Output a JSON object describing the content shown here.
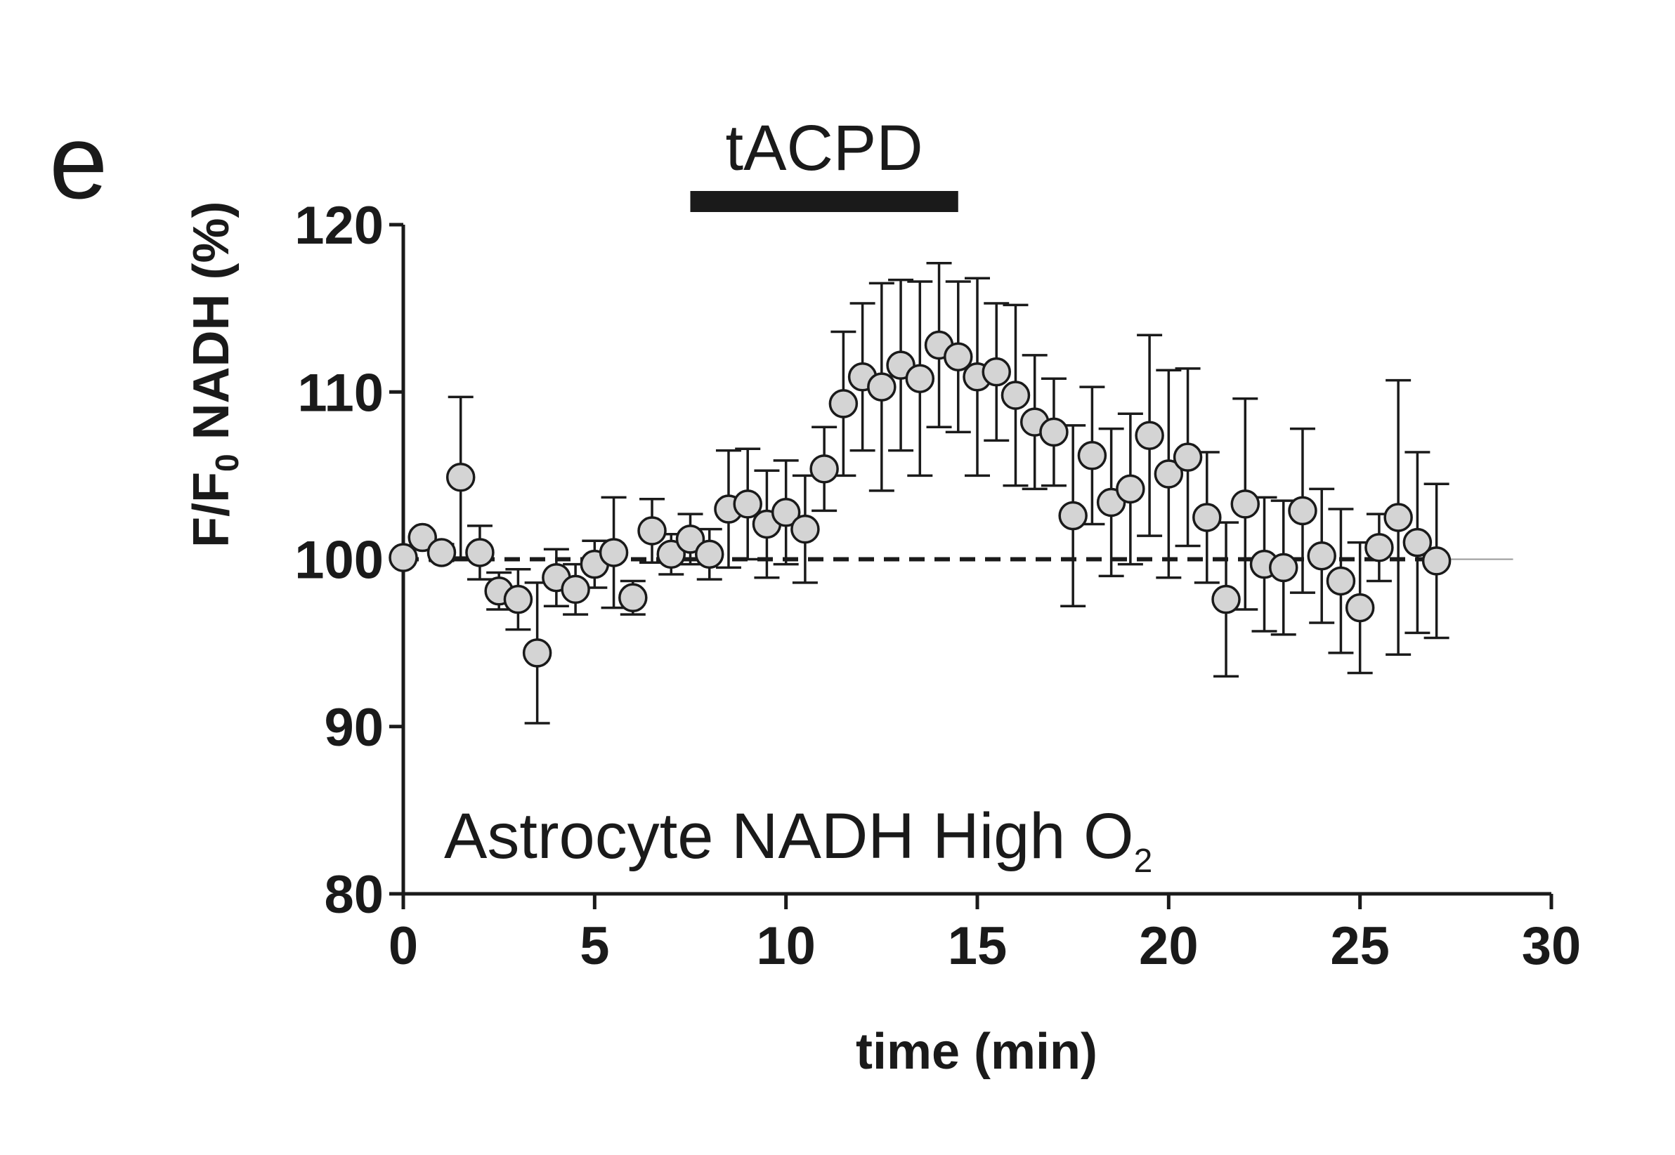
{
  "panel_label": "e",
  "treatment": {
    "label": "tACPD",
    "start": 7.5,
    "end": 14.5
  },
  "inset_label": {
    "main": "Astrocyte NADH High O",
    "subscript": "2"
  },
  "y_axis_title": {
    "prefix": "F/F",
    "subscript": "0",
    "suffix": " NADH (%)"
  },
  "x_axis_title": "time (min)",
  "chart_data": {
    "type": "scatter",
    "title": "",
    "xlabel": "time (min)",
    "ylabel": "F/F0 NADH (%)",
    "xlim": [
      0,
      30
    ],
    "ylim": [
      80,
      120
    ],
    "xticks": [
      0,
      5,
      10,
      15,
      20,
      25,
      30
    ],
    "yticks": [
      80,
      90,
      100,
      110,
      120
    ],
    "baseline": 100,
    "grid": false,
    "legend": "none",
    "series": [
      {
        "x": [
          0,
          0.5,
          1,
          1.5,
          2,
          2.5,
          3,
          3.5,
          4,
          4.5,
          5,
          5.5,
          6,
          6.5,
          7,
          7.5,
          8,
          8.5,
          9,
          9.5,
          10,
          10.5,
          11,
          11.5,
          12,
          12.5,
          13,
          13.5,
          14,
          14.5,
          15,
          15.5,
          16,
          16.5,
          17,
          17.5,
          18,
          18.5,
          19,
          19.5,
          20,
          20.5,
          21,
          21.5,
          22,
          22.5,
          23,
          23.5,
          24,
          24.5,
          25,
          25.5,
          26,
          26.5,
          27
        ],
        "y": [
          100.1,
          101.3,
          100.4,
          104.9,
          100.4,
          98.1,
          97.6,
          94.4,
          98.9,
          98.2,
          99.7,
          100.4,
          97.7,
          101.7,
          100.3,
          101.2,
          100.3,
          103.0,
          103.3,
          102.1,
          102.8,
          101.8,
          105.4,
          109.3,
          110.9,
          110.3,
          111.6,
          110.8,
          112.8,
          112.1,
          110.9,
          111.2,
          109.8,
          108.2,
          107.6,
          102.6,
          106.2,
          103.4,
          104.2,
          107.4,
          105.1,
          106.1,
          102.5,
          97.6,
          103.3,
          99.7,
          99.5,
          102.9,
          100.2,
          98.7,
          97.1,
          100.7,
          102.5,
          101.0,
          99.9
        ],
        "error": [
          0.2,
          0.4,
          0.5,
          4.8,
          1.6,
          1.1,
          1.8,
          4.2,
          1.7,
          1.5,
          1.4,
          3.3,
          1.0,
          1.9,
          1.2,
          1.5,
          1.5,
          3.5,
          3.3,
          3.2,
          3.1,
          3.2,
          2.5,
          4.3,
          4.4,
          6.2,
          5.1,
          5.8,
          4.9,
          4.5,
          5.9,
          4.1,
          5.4,
          4.0,
          3.2,
          5.4,
          4.1,
          4.4,
          4.5,
          6.0,
          6.2,
          5.3,
          3.9,
          4.6,
          6.3,
          4.0,
          4.0,
          4.9,
          4.0,
          4.3,
          3.9,
          2.0,
          8.2,
          5.4,
          4.6
        ]
      }
    ]
  }
}
